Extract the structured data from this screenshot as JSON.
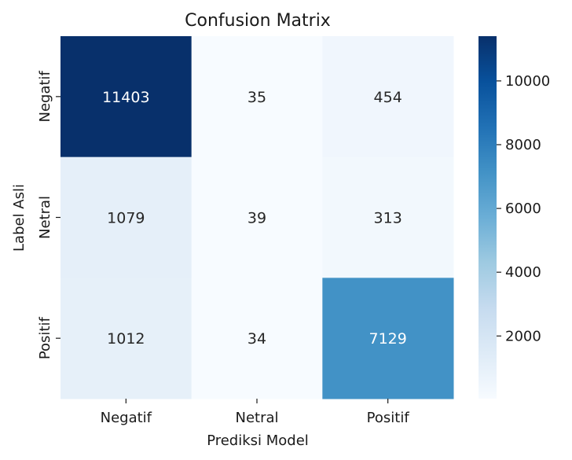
{
  "chart_data": {
    "type": "heatmap",
    "title": "Confusion Matrix",
    "xlabel": "Prediksi Model",
    "ylabel": "Label Asli",
    "x_categories": [
      "Negatif",
      "Netral",
      "Positif"
    ],
    "y_categories": [
      "Negatif",
      "Netral",
      "Positif"
    ],
    "values": [
      [
        11403,
        35,
        454
      ],
      [
        1079,
        39,
        313
      ],
      [
        1012,
        34,
        7129
      ]
    ],
    "colormap": "Blues",
    "colorbar": {
      "min": 34,
      "max": 11403,
      "ticks": [
        2000,
        4000,
        6000,
        8000,
        10000
      ]
    }
  }
}
